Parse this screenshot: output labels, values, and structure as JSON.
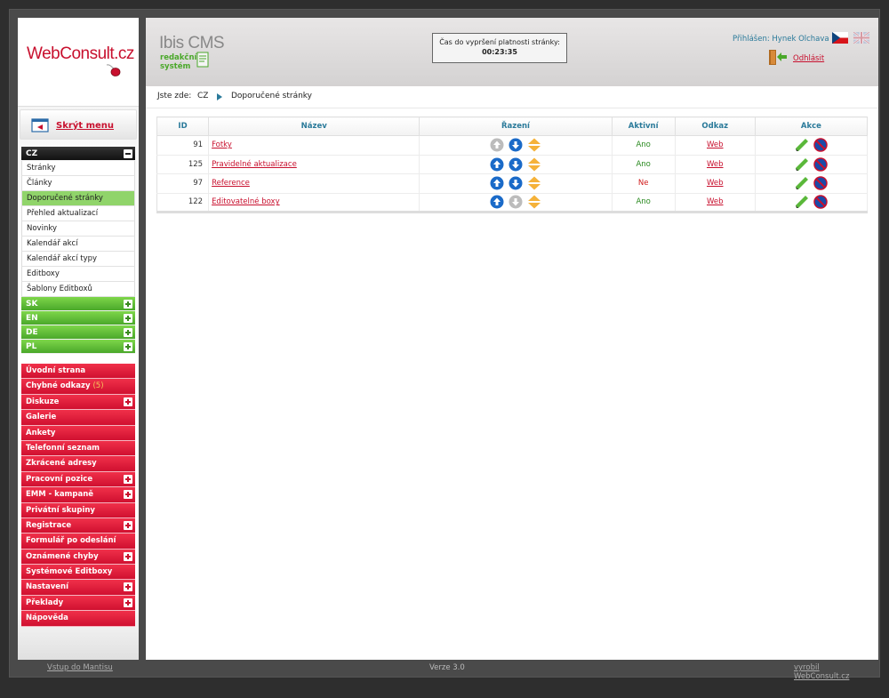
{
  "brand": {
    "logo": "WebConsult.cz",
    "cms_title": "Ibis CMS",
    "cms_sub1": "redakční",
    "cms_sub2": "systém",
    "accent": "#c8102e",
    "green": "#4aa82a"
  },
  "sidebar": {
    "hide_menu": "Skrýt menu",
    "cz_header": "CZ",
    "cz_items": [
      {
        "label": "Stránky"
      },
      {
        "label": "Články"
      },
      {
        "label": "Doporučené stránky"
      },
      {
        "label": "Přehled aktualizací"
      },
      {
        "label": "Novinky"
      },
      {
        "label": "Kalendář akcí"
      },
      {
        "label": "Kalendář akcí typy"
      },
      {
        "label": "Editboxy"
      },
      {
        "label": "Šablony Editboxů"
      }
    ],
    "lang_headers": [
      {
        "label": "SK"
      },
      {
        "label": "EN"
      },
      {
        "label": "DE"
      },
      {
        "label": "PL"
      }
    ],
    "red_items": [
      {
        "label": "Úvodní strana"
      },
      {
        "label": "Chybné odkazy",
        "badge": "(5)"
      },
      {
        "label": "Diskuze"
      },
      {
        "label": "Galerie"
      },
      {
        "label": "Ankety"
      },
      {
        "label": "Telefonní seznam"
      },
      {
        "label": "Zkrácené adresy"
      },
      {
        "label": "Pracovní pozice"
      },
      {
        "label": "EMM - kampaně"
      },
      {
        "label": "Privátní skupiny"
      },
      {
        "label": "Registrace"
      },
      {
        "label": "Formulář po odeslání"
      },
      {
        "label": "Oznámené chyby"
      },
      {
        "label": "Systémové Editboxy"
      },
      {
        "label": "Nastavení"
      },
      {
        "label": "Překlady"
      },
      {
        "label": "Nápověda"
      }
    ]
  },
  "header": {
    "timer_label": "Čas do vypršení platnosti stránky:",
    "timer_value": "00:23:35",
    "logged_in": "Přihlášen: Hynek Olchava",
    "logout": "Odhlásit"
  },
  "breadcrumb": {
    "label": "Jste zde:",
    "root": "CZ",
    "current": "Doporučené stránky"
  },
  "table": {
    "headers": {
      "id": "ID",
      "name": "Název",
      "sort": "Řazení",
      "active": "Aktivní",
      "link": "Odkaz",
      "actions": "Akce"
    },
    "rows": [
      {
        "id": "91",
        "name": "Fotky",
        "active": "Ano",
        "link": "Web"
      },
      {
        "id": "125",
        "name": "Pravidelné aktualizace",
        "active": "Ano",
        "link": "Web"
      },
      {
        "id": "97",
        "name": "Reference",
        "active": "Ne",
        "link": "Web"
      },
      {
        "id": "122",
        "name": "Editovatelné boxy",
        "active": "Ano",
        "link": "Web"
      }
    ]
  },
  "footer": {
    "left": "Vstup do Mantisu",
    "center": "Verze 3.0",
    "right": "vyrobil WebConsult.cz"
  }
}
